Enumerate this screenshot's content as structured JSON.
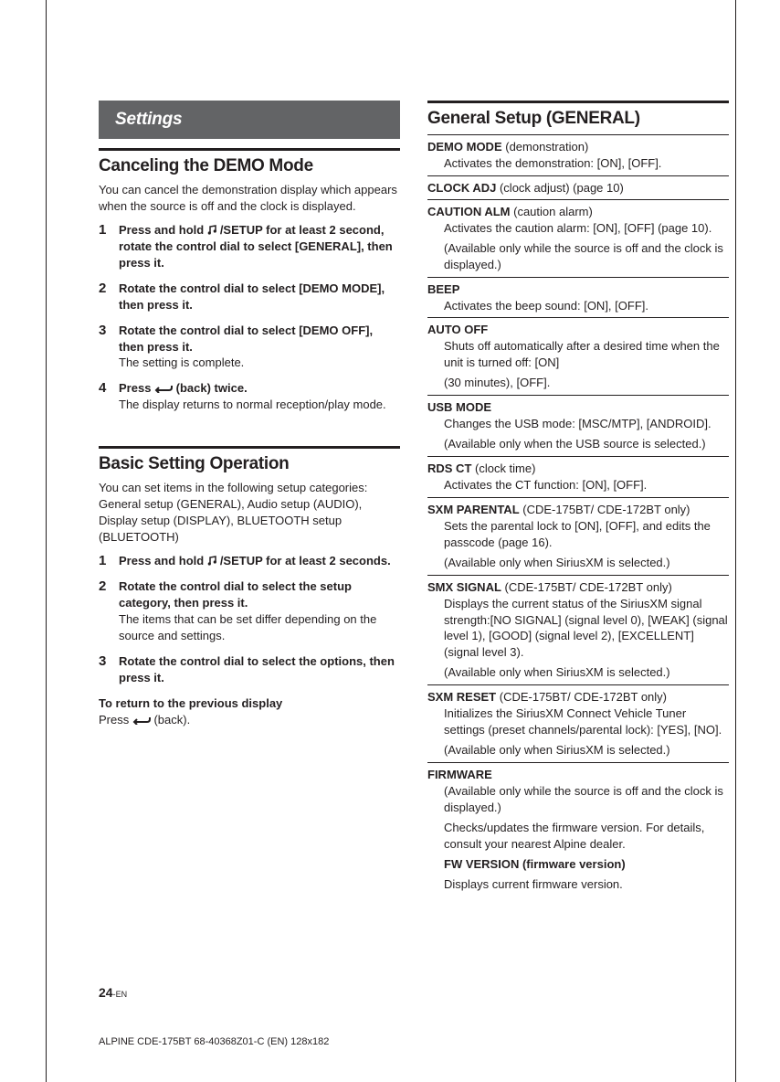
{
  "banner": "Settings",
  "left": {
    "h1": "Canceling the DEMO Mode",
    "intro": "You can cancel the demonstration display which appears when the source is off and the clock is displayed.",
    "steps": [
      {
        "num": "1",
        "lead_pre": "Press and hold ",
        "lead_post": "/SETUP for at least 2 second, rotate the control dial to select [GENERAL], then press it.",
        "sub": ""
      },
      {
        "num": "2",
        "lead": "Rotate the control dial to select [DEMO MODE], then press it.",
        "sub": ""
      },
      {
        "num": "3",
        "lead": "Rotate the control dial to select [DEMO OFF], then press it.",
        "sub": "The setting is complete."
      },
      {
        "num": "4",
        "lead_pre": "Press ",
        "lead_post": " (back) twice.",
        "sub": "The display returns to normal reception/play mode."
      }
    ],
    "h2": "Basic Setting Operation",
    "intro2a": "You can set items in the following setup categories:",
    "intro2b": "General setup (GENERAL), Audio setup (AUDIO), Display setup (DISPLAY), BLUETOOTH setup (BLUETOOTH)",
    "steps2": [
      {
        "num": "1",
        "lead_pre": "Press and hold ",
        "lead_post": "/SETUP for at least 2 seconds.",
        "sub": ""
      },
      {
        "num": "2",
        "lead": "Rotate the control dial to select the setup category, then press it.",
        "sub": "The items that can be set differ depending on the source and settings."
      },
      {
        "num": "3",
        "lead": "Rotate the control dial to select the options, then press it.",
        "sub": ""
      }
    ],
    "return_title": "To return to the previous display",
    "return_body_pre": "Press ",
    "return_body_post": " (back)."
  },
  "right": {
    "h1": "General Setup (GENERAL)",
    "items": [
      {
        "title": "DEMO MODE",
        "suffix": " (demonstration)",
        "desc": [
          "Activates the demonstration: [ON], [OFF]."
        ]
      },
      {
        "title": "CLOCK ADJ",
        "suffix": " (clock adjust) (page 10)",
        "desc": []
      },
      {
        "title": "CAUTION ALM",
        "suffix": " (caution alarm)",
        "desc": [
          "Activates the caution alarm: [ON], [OFF] (page 10).",
          "(Available only while the source is off and the clock is displayed.)"
        ]
      },
      {
        "title": "BEEP",
        "suffix": "",
        "desc": [
          "Activates the beep sound: [ON], [OFF]."
        ]
      },
      {
        "title": "AUTO OFF",
        "suffix": "",
        "desc": [
          "Shuts off automatically after a desired time when the unit is turned off: [ON]",
          "(30 minutes), [OFF]."
        ]
      },
      {
        "title": "USB MODE",
        "suffix": "",
        "desc": [
          "Changes the USB mode: [MSC/MTP], [ANDROID].",
          "(Available only when the USB source is selected.)"
        ]
      },
      {
        "title": "RDS CT",
        "suffix": " (clock time)",
        "desc": [
          "Activates the CT function: [ON], [OFF]."
        ]
      },
      {
        "title": "SXM PARENTAL",
        "suffix": " (CDE-175BT/ CDE-172BT only)",
        "desc": [
          "Sets the parental lock to [ON], [OFF], and edits the passcode (page 16).",
          "(Available only when SiriusXM is selected.)"
        ]
      },
      {
        "title": "SMX SIGNAL",
        "suffix": " (CDE-175BT/ CDE-172BT only)",
        "desc": [
          "Displays the current status of the SiriusXM signal strength:[NO SIGNAL] (signal level 0), [WEAK] (signal level 1), [GOOD] (signal level 2), [EXCELLENT] (signal level 3).",
          "(Available only when SiriusXM is selected.)"
        ]
      },
      {
        "title": "SXM RESET",
        "suffix": " (CDE-175BT/ CDE-172BT only)",
        "desc": [
          "Initializes the SiriusXM Connect Vehicle Tuner settings (preset channels/parental lock): [YES], [NO].",
          "(Available only when SiriusXM is selected.)"
        ]
      },
      {
        "title": "FIRMWARE",
        "suffix": "",
        "desc": [
          "(Available only while the source is off and the clock is displayed.)",
          "Checks/updates the firmware version. For details, consult your nearest Alpine dealer."
        ],
        "bold_sub": "FW VERSION (firmware version)",
        "desc2": [
          "Displays current firmware version."
        ]
      }
    ]
  },
  "page_num": "24",
  "page_suffix": "-EN",
  "footer": "ALPINE CDE-175BT 68-40368Z01-C (EN) 128x182"
}
